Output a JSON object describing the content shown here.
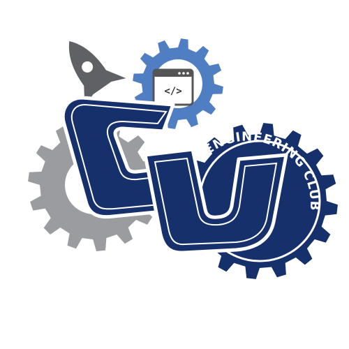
{
  "logo": {
    "monogram": "CU",
    "arc_text": "ENGINEERING CLUB",
    "code_glyph": "</>",
    "colors": {
      "navy": "#16306b",
      "medium_blue": "#4f7ec3",
      "gray": "#9a9c9f",
      "dark_gray": "#5f6164",
      "white": "#ffffff"
    },
    "icons": [
      "gray-gear-icon",
      "blue-gear-icon",
      "navy-gear-icon",
      "rocket-icon",
      "browser-window-icon",
      "code-brackets-icon"
    ]
  }
}
